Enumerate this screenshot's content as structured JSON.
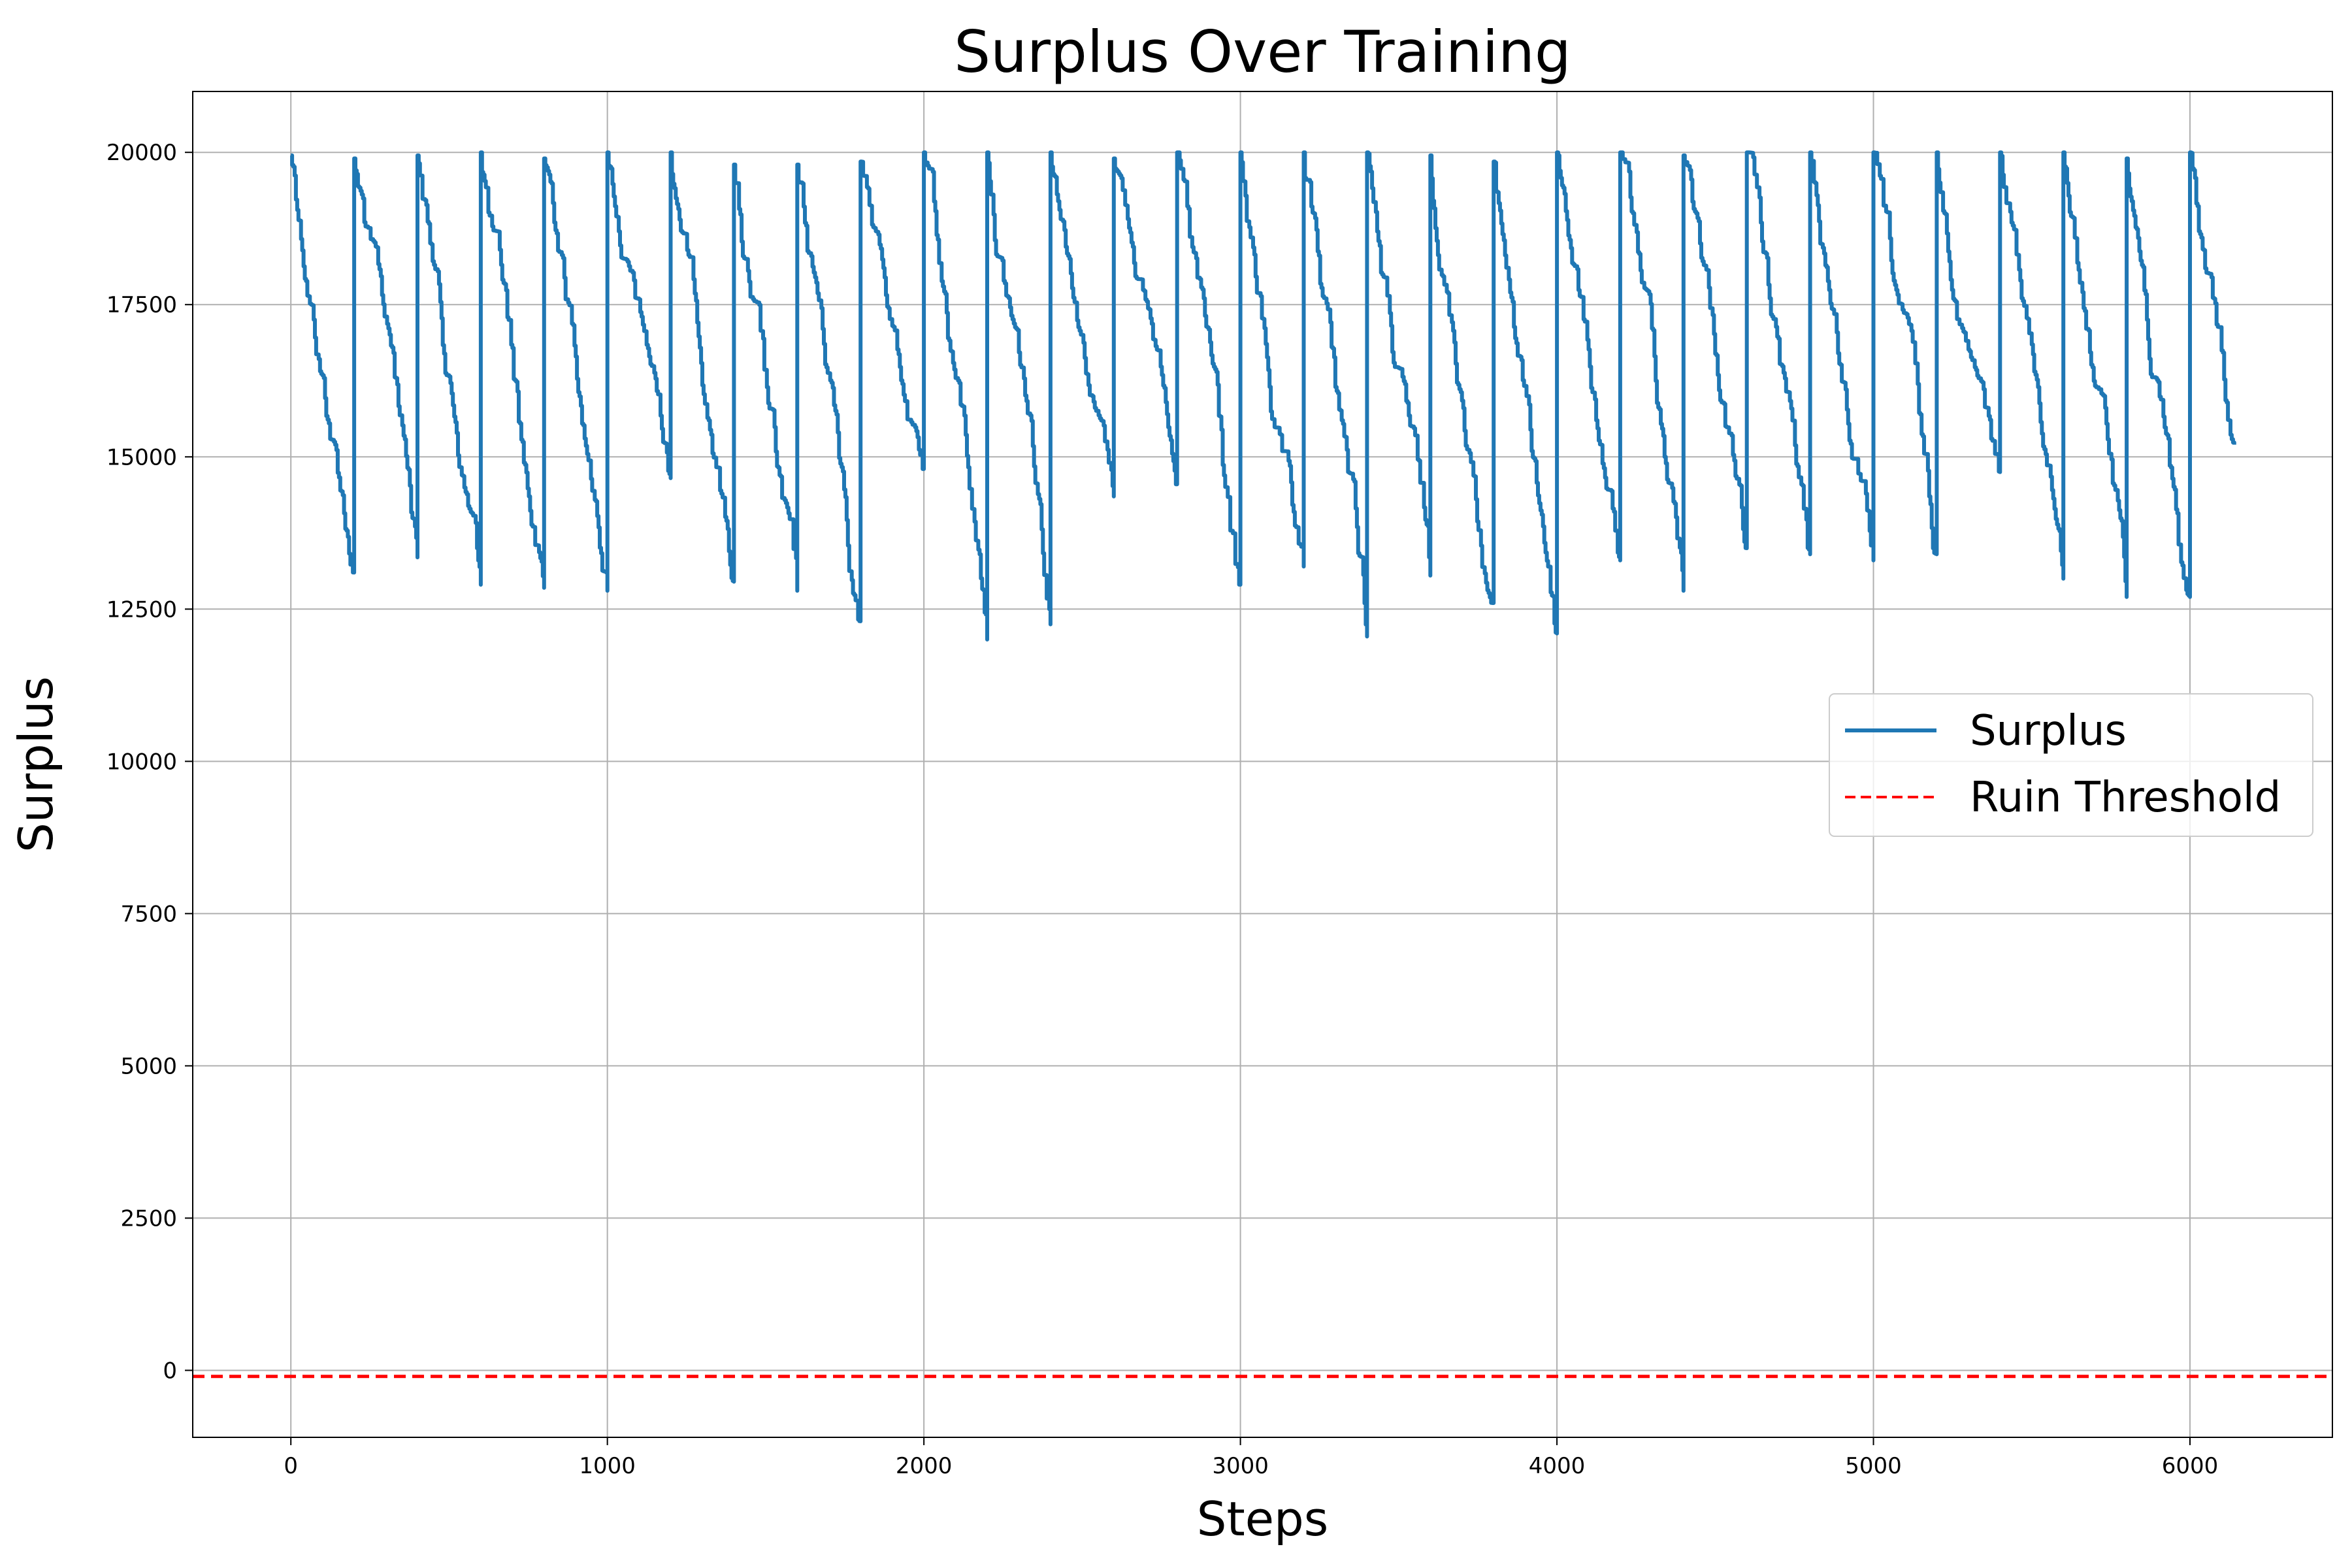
{
  "chart_data": {
    "type": "line",
    "title": "Surplus Over Training",
    "xlabel": "Steps",
    "ylabel": "Surplus",
    "xlim": [
      -310,
      6450
    ],
    "ylim": [
      -1100,
      21000
    ],
    "x_ticks": [
      0,
      1000,
      2000,
      3000,
      4000,
      5000,
      6000
    ],
    "y_ticks": [
      0,
      2500,
      5000,
      7500,
      10000,
      12500,
      15000,
      17500,
      20000
    ],
    "grid": true,
    "legend_position": "center-right",
    "episode_length": 200,
    "episodes": [
      {
        "start": 0,
        "start_value": 19950,
        "end_value": 13100
      },
      {
        "start": 200,
        "start_value": 19900,
        "end_value": 13350
      },
      {
        "start": 400,
        "start_value": 19950,
        "end_value": 12900
      },
      {
        "start": 600,
        "start_value": 20000,
        "end_value": 12850
      },
      {
        "start": 800,
        "start_value": 19900,
        "end_value": 12800
      },
      {
        "start": 1000,
        "start_value": 20000,
        "end_value": 14650
      },
      {
        "start": 1200,
        "start_value": 20000,
        "end_value": 12950
      },
      {
        "start": 1400,
        "start_value": 19800,
        "end_value": 12800
      },
      {
        "start": 1600,
        "start_value": 19800,
        "end_value": 12300
      },
      {
        "start": 1800,
        "start_value": 19850,
        "end_value": 14800
      },
      {
        "start": 2000,
        "start_value": 20000,
        "end_value": 12000
      },
      {
        "start": 2200,
        "start_value": 20000,
        "end_value": 12250
      },
      {
        "start": 2400,
        "start_value": 20000,
        "end_value": 14350
      },
      {
        "start": 2600,
        "start_value": 19900,
        "end_value": 14550
      },
      {
        "start": 2800,
        "start_value": 20000,
        "end_value": 12900
      },
      {
        "start": 3000,
        "start_value": 20000,
        "end_value": 13200
      },
      {
        "start": 3200,
        "start_value": 20000,
        "end_value": 12050
      },
      {
        "start": 3400,
        "start_value": 20000,
        "end_value": 13050
      },
      {
        "start": 3600,
        "start_value": 19950,
        "end_value": 12600
      },
      {
        "start": 3800,
        "start_value": 19850,
        "end_value": 12100
      },
      {
        "start": 4000,
        "start_value": 20000,
        "end_value": 13300
      },
      {
        "start": 4200,
        "start_value": 20000,
        "end_value": 12800
      },
      {
        "start": 4400,
        "start_value": 19950,
        "end_value": 13500
      },
      {
        "start": 4600,
        "start_value": 20000,
        "end_value": 13400
      },
      {
        "start": 4800,
        "start_value": 20000,
        "end_value": 13300
      },
      {
        "start": 5000,
        "start_value": 20000,
        "end_value": 13400
      },
      {
        "start": 5200,
        "start_value": 20000,
        "end_value": 14750
      },
      {
        "start": 5400,
        "start_value": 20000,
        "end_value": 13000
      },
      {
        "start": 5600,
        "start_value": 20000,
        "end_value": 12700
      },
      {
        "start": 5800,
        "start_value": 19900,
        "end_value": 12700
      },
      {
        "start": 6000,
        "start_value": 20000,
        "end_value": 15200,
        "end": 6140
      }
    ],
    "series": [
      {
        "name": "Surplus",
        "color": "#1f77b4",
        "style": "solid"
      },
      {
        "name": "Ruin Threshold",
        "color": "#ff0000",
        "style": "dashed",
        "y": -100
      }
    ]
  }
}
